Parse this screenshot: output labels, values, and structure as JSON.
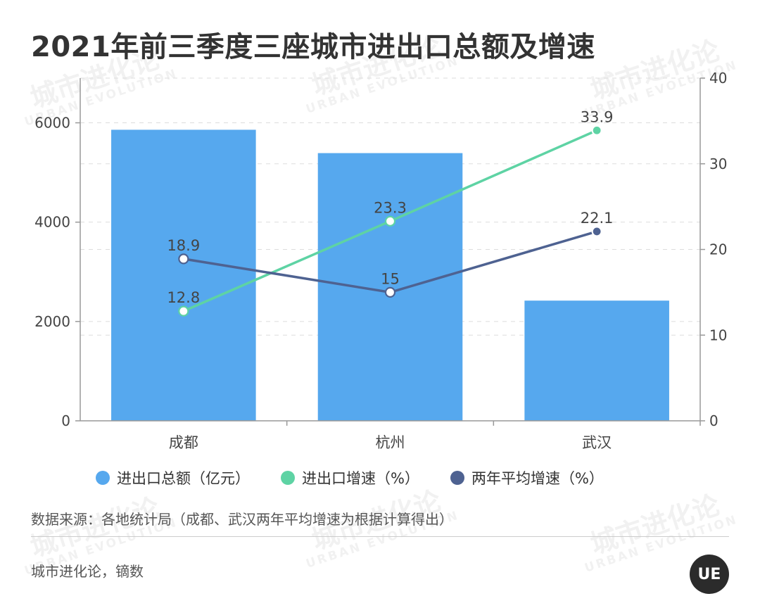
{
  "title": "2021年前三季度三座城市进出口总额及增速",
  "watermark": {
    "cn": "城市进化论",
    "en": "URBAN EVOLUTION"
  },
  "chart_data": {
    "type": "bar+line",
    "categories": [
      "成都",
      "杭州",
      "武汉"
    ],
    "bar_series": {
      "name": "进出口总额（亿元）",
      "values": [
        5860,
        5390,
        2420
      ],
      "color": "#56A8EE"
    },
    "line_series": [
      {
        "name": "进出口增速（%）",
        "values": [
          12.8,
          23.3,
          33.9
        ],
        "color": "#5ED3A4",
        "labels": [
          "12.8",
          "23.3",
          "33.9"
        ]
      },
      {
        "name": "两年平均增速（%）",
        "values": [
          18.9,
          15,
          22.1
        ],
        "color": "#4E6291",
        "labels": [
          "18.9",
          "15",
          "22.1"
        ]
      }
    ],
    "y_left": {
      "range": [
        0,
        6900
      ],
      "ticks": [
        0,
        2000,
        4000,
        6000
      ],
      "tick_labels": [
        "0",
        "2000",
        "4000",
        "6000"
      ]
    },
    "y_right": {
      "range": [
        0,
        40
      ],
      "ticks": [
        0,
        10,
        20,
        30,
        40
      ],
      "tick_labels": [
        "0",
        "10",
        "20",
        "30",
        "40"
      ]
    },
    "grid": true,
    "legend_position": "bottom"
  },
  "source": "数据来源：各地统计局（成都、武汉两年平均增速为根据计算得出）",
  "footer": "城市进化论，镝数",
  "logo": "UE"
}
